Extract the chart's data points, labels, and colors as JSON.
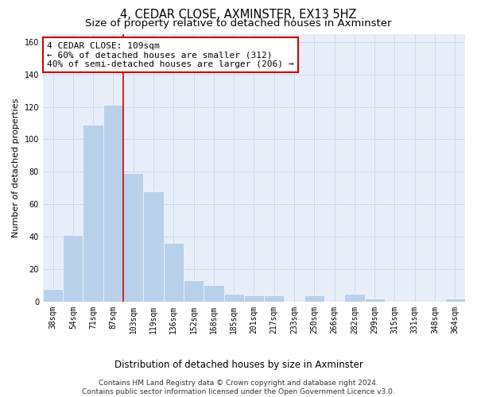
{
  "title": "4, CEDAR CLOSE, AXMINSTER, EX13 5HZ",
  "subtitle": "Size of property relative to detached houses in Axminster",
  "xlabel": "Distribution of detached houses by size in Axminster",
  "ylabel": "Number of detached properties",
  "categories": [
    "38sqm",
    "54sqm",
    "71sqm",
    "87sqm",
    "103sqm",
    "119sqm",
    "136sqm",
    "152sqm",
    "168sqm",
    "185sqm",
    "201sqm",
    "217sqm",
    "233sqm",
    "250sqm",
    "266sqm",
    "282sqm",
    "299sqm",
    "315sqm",
    "331sqm",
    "348sqm",
    "364sqm"
  ],
  "values": [
    8,
    41,
    109,
    121,
    79,
    68,
    36,
    13,
    10,
    5,
    4,
    4,
    0,
    4,
    0,
    5,
    2,
    0,
    0,
    0,
    2
  ],
  "bar_color": "#b8d0ea",
  "bar_edge_color": "#b8d0ea",
  "grid_color": "#c8d4e8",
  "background_color": "#e8eef8",
  "vline_x_index": 3,
  "vline_color": "#cc0000",
  "annotation_line1": "4 CEDAR CLOSE: 109sqm",
  "annotation_line2": "← 60% of detached houses are smaller (312)",
  "annotation_line3": "40% of semi-detached houses are larger (206) →",
  "annotation_box_color": "#ffffff",
  "annotation_box_edge": "#cc0000",
  "footer": "Contains HM Land Registry data © Crown copyright and database right 2024.\nContains public sector information licensed under the Open Government Licence v3.0.",
  "ylim": [
    0,
    165
  ],
  "yticks": [
    0,
    20,
    40,
    60,
    80,
    100,
    120,
    140,
    160
  ],
  "title_fontsize": 10.5,
  "subtitle_fontsize": 9.5,
  "xlabel_fontsize": 8.5,
  "ylabel_fontsize": 8,
  "tick_fontsize": 7,
  "annotation_fontsize": 8,
  "footer_fontsize": 6.5
}
